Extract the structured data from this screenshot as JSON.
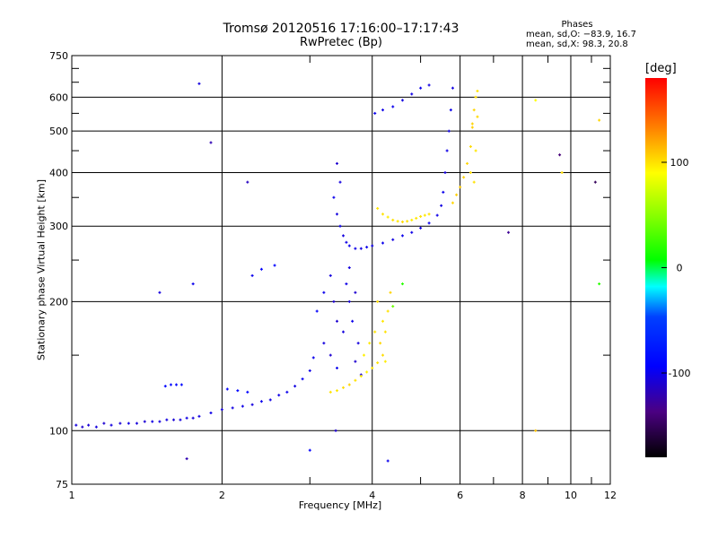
{
  "chart_data": {
    "type": "scatter",
    "title": "Tromsø 20120516 17:16:00–17:17:43",
    "subtitle": "RwPretec (Bp)",
    "xlabel": "Frequency [MHz]",
    "ylabel": "Stationary phase Virtual Height [km]",
    "x_scale": "log",
    "y_scale": "log",
    "xlim": [
      1,
      12
    ],
    "ylim": [
      75,
      750
    ],
    "x_ticks": [
      1,
      2,
      4,
      6,
      8,
      10,
      12
    ],
    "x_minor_ticks": [
      3,
      5,
      7,
      9,
      11
    ],
    "y_ticks": [
      75,
      100,
      200,
      300,
      400,
      500,
      600,
      750
    ],
    "y_minor_ticks": [
      150,
      250,
      350,
      450,
      550,
      650,
      700
    ],
    "grid": true,
    "phases": {
      "title": "Phases",
      "o_line": "mean, sd,O: −83.9, 16.7",
      "x_line": "mean, sd,X:  98.3, 20.8"
    },
    "colorbar": {
      "unit": "[deg]",
      "ticks": [
        100,
        0,
        -100
      ],
      "range": [
        -180,
        180
      ]
    },
    "series": [
      {
        "points": [
          [
            1.02,
            103,
            -105
          ],
          [
            1.05,
            102,
            -110
          ],
          [
            1.08,
            103,
            -108
          ],
          [
            1.12,
            102,
            -105
          ],
          [
            1.16,
            104,
            -110
          ],
          [
            1.2,
            103,
            -105
          ],
          [
            1.25,
            104,
            -108
          ],
          [
            1.3,
            104,
            -103
          ],
          [
            1.35,
            104,
            -106
          ],
          [
            1.4,
            105,
            -108
          ],
          [
            1.45,
            105,
            -103
          ],
          [
            1.5,
            105,
            -105
          ],
          [
            1.55,
            106,
            -104
          ],
          [
            1.6,
            106,
            -108
          ],
          [
            1.65,
            106,
            -105
          ],
          [
            1.7,
            107,
            -103
          ],
          [
            1.75,
            107,
            -106
          ],
          [
            1.8,
            108,
            -104
          ],
          [
            1.9,
            110,
            -102
          ],
          [
            2.0,
            112,
            -105
          ],
          [
            2.1,
            113,
            -104
          ],
          [
            2.2,
            114,
            -102
          ],
          [
            2.3,
            115,
            -105
          ],
          [
            2.4,
            117,
            -100
          ],
          [
            2.5,
            118,
            -103
          ],
          [
            2.6,
            121,
            -102
          ],
          [
            2.7,
            123,
            -100
          ],
          [
            2.8,
            127,
            -104
          ],
          [
            2.9,
            132,
            -98
          ],
          [
            3.0,
            138,
            -102
          ],
          [
            3.05,
            148,
            -100
          ],
          [
            1.54,
            127,
            -90
          ],
          [
            1.58,
            128,
            -88
          ],
          [
            1.62,
            128,
            -92
          ],
          [
            1.66,
            128,
            -88
          ],
          [
            2.05,
            125,
            -95
          ],
          [
            2.15,
            124,
            -90
          ],
          [
            2.25,
            123,
            -92
          ],
          [
            3.1,
            190,
            -95
          ],
          [
            3.2,
            210,
            -100
          ],
          [
            3.3,
            230,
            -105
          ],
          [
            3.4,
            180,
            -110
          ],
          [
            3.2,
            160,
            -105
          ],
          [
            3.3,
            150,
            -110
          ],
          [
            3.4,
            140,
            -100
          ],
          [
            3.5,
            170,
            -105
          ],
          [
            3.35,
            200,
            -110
          ],
          [
            3.6,
            240,
            -105
          ],
          [
            3.7,
            210,
            -110
          ],
          [
            3.65,
            180,
            -100
          ],
          [
            3.75,
            160,
            -105
          ],
          [
            3.7,
            145,
            -110
          ],
          [
            3.8,
            135,
            -108
          ],
          [
            3.6,
            200,
            -108
          ],
          [
            3.55,
            220,
            -102
          ],
          [
            3.4,
            420,
            -110
          ],
          [
            3.45,
            380,
            -105
          ],
          [
            3.35,
            350,
            -100
          ],
          [
            3.4,
            320,
            -105
          ],
          [
            3.45,
            300,
            -100
          ],
          [
            3.5,
            285,
            -105
          ],
          [
            3.55,
            275,
            -102
          ],
          [
            3.6,
            270,
            -100
          ],
          [
            3.7,
            266,
            -102
          ],
          [
            3.8,
            266,
            -104
          ],
          [
            3.9,
            268,
            -100
          ],
          [
            4.0,
            270,
            -102
          ],
          [
            4.2,
            274,
            -100
          ],
          [
            4.4,
            279,
            -104
          ],
          [
            4.6,
            285,
            -100
          ],
          [
            4.8,
            290,
            -102
          ],
          [
            5.0,
            297,
            -104
          ],
          [
            5.2,
            305,
            -100
          ],
          [
            5.4,
            318,
            -102
          ],
          [
            5.5,
            335,
            -104
          ],
          [
            5.55,
            360,
            -100
          ],
          [
            5.6,
            400,
            -105
          ],
          [
            5.65,
            450,
            -102
          ],
          [
            5.7,
            500,
            -104
          ],
          [
            5.75,
            560,
            -100
          ],
          [
            5.8,
            630,
            -104
          ],
          [
            4.05,
            550,
            -100
          ],
          [
            4.2,
            560,
            -102
          ],
          [
            4.4,
            570,
            -100
          ],
          [
            4.6,
            590,
            -104
          ],
          [
            4.8,
            610,
            -102
          ],
          [
            5.0,
            630,
            -100
          ],
          [
            5.2,
            640,
            -104
          ],
          [
            1.8,
            645,
            -105
          ],
          [
            2.3,
            230,
            -100
          ],
          [
            2.4,
            238,
            -95
          ],
          [
            2.55,
            243,
            -92
          ],
          [
            1.5,
            210,
            -105
          ],
          [
            1.75,
            220,
            -100
          ],
          [
            3.38,
            100,
            -110
          ],
          [
            4.3,
            85,
            -100
          ],
          [
            1.7,
            86,
            -120
          ],
          [
            3.0,
            90,
            -95
          ],
          [
            2.25,
            380,
            -115
          ],
          [
            1.9,
            470,
            -120
          ],
          [
            7.5,
            290,
            -130
          ],
          [
            9.5,
            440,
            -140
          ],
          [
            11.2,
            380,
            -150
          ]
        ]
      },
      {
        "points": [
          [
            3.3,
            123,
            100
          ],
          [
            3.4,
            124,
            98
          ],
          [
            3.5,
            126,
            102
          ],
          [
            3.6,
            128,
            105
          ],
          [
            3.7,
            131,
            100
          ],
          [
            3.8,
            134,
            96
          ],
          [
            3.9,
            137,
            95
          ],
          [
            4.0,
            140,
            98
          ],
          [
            4.1,
            144,
            100
          ],
          [
            4.2,
            150,
            102
          ],
          [
            4.15,
            160,
            104
          ],
          [
            4.25,
            170,
            100
          ],
          [
            4.2,
            180,
            98
          ],
          [
            4.3,
            190,
            100
          ],
          [
            3.85,
            150,
            95
          ],
          [
            3.95,
            160,
            98
          ],
          [
            4.05,
            170,
            100
          ],
          [
            4.1,
            200,
            102
          ],
          [
            4.35,
            210,
            105
          ],
          [
            4.25,
            145,
            96
          ],
          [
            4.1,
            330,
            98
          ],
          [
            4.2,
            320,
            100
          ],
          [
            4.3,
            315,
            96
          ],
          [
            4.4,
            310,
            100
          ],
          [
            4.5,
            308,
            98
          ],
          [
            4.6,
            307,
            102
          ],
          [
            4.7,
            308,
            100
          ],
          [
            4.8,
            310,
            96
          ],
          [
            4.9,
            313,
            98
          ],
          [
            5.0,
            316,
            100
          ],
          [
            5.1,
            318,
            97
          ],
          [
            5.2,
            320,
            99
          ],
          [
            5.8,
            340,
            104
          ],
          [
            5.9,
            355,
            106
          ],
          [
            6.0,
            370,
            108
          ],
          [
            6.1,
            390,
            106
          ],
          [
            6.2,
            420,
            104
          ],
          [
            6.3,
            460,
            102
          ],
          [
            6.35,
            510,
            106
          ],
          [
            6.4,
            560,
            104
          ],
          [
            6.45,
            600,
            102
          ],
          [
            6.5,
            620,
            100
          ],
          [
            6.3,
            400,
            102
          ],
          [
            6.4,
            380,
            100
          ],
          [
            6.45,
            450,
            98
          ],
          [
            6.35,
            520,
            105
          ],
          [
            6.5,
            540,
            103
          ],
          [
            8.5,
            100,
            110
          ],
          [
            9.6,
            400,
            102
          ],
          [
            11.4,
            530,
            104
          ],
          [
            11.4,
            220,
            20
          ],
          [
            8.5,
            590,
            90
          ],
          [
            4.6,
            220,
            20
          ],
          [
            4.4,
            195,
            40
          ]
        ]
      }
    ]
  }
}
